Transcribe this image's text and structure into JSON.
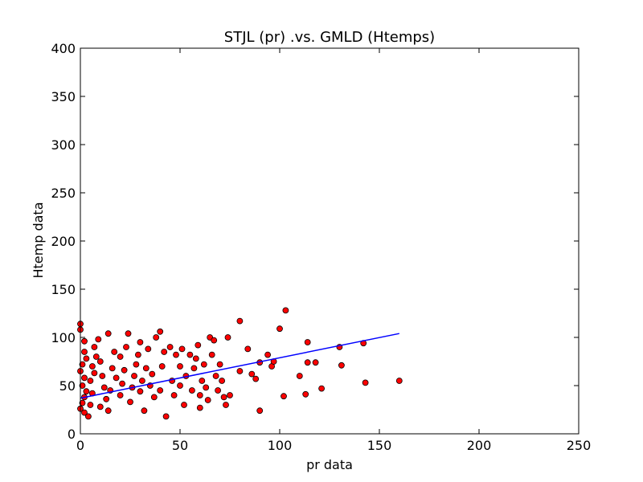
{
  "chart_data": {
    "type": "scatter",
    "title": "STJL (pr) .vs. GMLD (Htemps)",
    "xlabel": "pr data",
    "ylabel": "Htemp data",
    "xlim": [
      0,
      250
    ],
    "ylim": [
      0,
      400
    ],
    "xticks": [
      "0",
      "50",
      "100",
      "150",
      "200",
      "250"
    ],
    "yticks": [
      "0",
      "50",
      "100",
      "150",
      "200",
      "250",
      "300",
      "350",
      "400"
    ],
    "grid": false,
    "legend": "none",
    "point_color": "#ff0000",
    "point_edge_color": "#000000",
    "line_color": "#0000ff",
    "fit_line": {
      "x": [
        0,
        160
      ],
      "y": [
        37,
        104
      ]
    },
    "points": [
      [
        0,
        114
      ],
      [
        0,
        108
      ],
      [
        2,
        96
      ],
      [
        2,
        85
      ],
      [
        3,
        78
      ],
      [
        1,
        72
      ],
      [
        0,
        65
      ],
      [
        2,
        58
      ],
      [
        1,
        50
      ],
      [
        3,
        44
      ],
      [
        2,
        38
      ],
      [
        1,
        32
      ],
      [
        0,
        26
      ],
      [
        2,
        22
      ],
      [
        4,
        18
      ],
      [
        5,
        30
      ],
      [
        6,
        42
      ],
      [
        5,
        55
      ],
      [
        7,
        63
      ],
      [
        6,
        70
      ],
      [
        8,
        80
      ],
      [
        7,
        90
      ],
      [
        9,
        98
      ],
      [
        10,
        75
      ],
      [
        11,
        60
      ],
      [
        12,
        48
      ],
      [
        13,
        36
      ],
      [
        10,
        28
      ],
      [
        14,
        24
      ],
      [
        15,
        45
      ],
      [
        16,
        68
      ],
      [
        17,
        85
      ],
      [
        14,
        104
      ],
      [
        18,
        58
      ],
      [
        20,
        40
      ],
      [
        21,
        52
      ],
      [
        22,
        66
      ],
      [
        20,
        80
      ],
      [
        23,
        90
      ],
      [
        24,
        104
      ],
      [
        25,
        33
      ],
      [
        26,
        48
      ],
      [
        27,
        60
      ],
      [
        28,
        72
      ],
      [
        29,
        82
      ],
      [
        30,
        95
      ],
      [
        30,
        44
      ],
      [
        31,
        55
      ],
      [
        32,
        24
      ],
      [
        33,
        68
      ],
      [
        34,
        88
      ],
      [
        35,
        50
      ],
      [
        36,
        62
      ],
      [
        37,
        38
      ],
      [
        38,
        100
      ],
      [
        40,
        106
      ],
      [
        40,
        45
      ],
      [
        41,
        70
      ],
      [
        42,
        85
      ],
      [
        43,
        18
      ],
      [
        45,
        90
      ],
      [
        46,
        55
      ],
      [
        47,
        40
      ],
      [
        48,
        82
      ],
      [
        50,
        70
      ],
      [
        50,
        50
      ],
      [
        51,
        88
      ],
      [
        52,
        30
      ],
      [
        53,
        60
      ],
      [
        55,
        82
      ],
      [
        56,
        45
      ],
      [
        57,
        68
      ],
      [
        58,
        78
      ],
      [
        59,
        92
      ],
      [
        60,
        40
      ],
      [
        60,
        27
      ],
      [
        61,
        55
      ],
      [
        62,
        72
      ],
      [
        63,
        48
      ],
      [
        64,
        35
      ],
      [
        65,
        100
      ],
      [
        66,
        82
      ],
      [
        67,
        97
      ],
      [
        68,
        60
      ],
      [
        69,
        45
      ],
      [
        70,
        72
      ],
      [
        71,
        55
      ],
      [
        72,
        38
      ],
      [
        73,
        30
      ],
      [
        74,
        100
      ],
      [
        75,
        40
      ],
      [
        80,
        117
      ],
      [
        80,
        65
      ],
      [
        84,
        88
      ],
      [
        86,
        62
      ],
      [
        88,
        57
      ],
      [
        90,
        24
      ],
      [
        90,
        74
      ],
      [
        94,
        82
      ],
      [
        96,
        70
      ],
      [
        97,
        75
      ],
      [
        100,
        109
      ],
      [
        102,
        39
      ],
      [
        103,
        128
      ],
      [
        110,
        60
      ],
      [
        113,
        41
      ],
      [
        114,
        95
      ],
      [
        114,
        74
      ],
      [
        118,
        74
      ],
      [
        121,
        47
      ],
      [
        130,
        90
      ],
      [
        131,
        71
      ],
      [
        142,
        94
      ],
      [
        143,
        53
      ],
      [
        160,
        55
      ]
    ]
  }
}
